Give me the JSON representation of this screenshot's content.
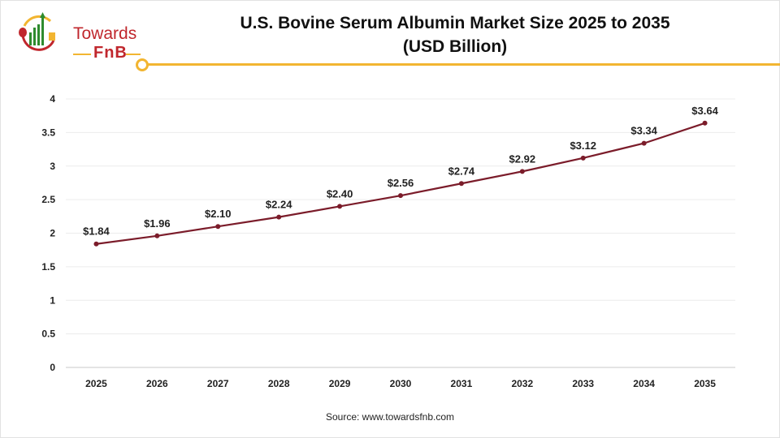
{
  "logo": {
    "line1": "Towards",
    "line2": "FnB"
  },
  "source": "Source: www.towardsfnb.com",
  "colors": {
    "line": "#7b1c2a",
    "accent": "#f2b531",
    "brand_red": "#c0272d",
    "grid": "#ececec"
  },
  "chart_data": {
    "type": "line",
    "title": "U.S. Bovine Serum Albumin Market Size 2025 to 2035",
    "subtitle": "(USD Billion)",
    "xlabel": "",
    "ylabel": "",
    "categories": [
      "2025",
      "2026",
      "2027",
      "2028",
      "2029",
      "2030",
      "2031",
      "2032",
      "2033",
      "2034",
      "2035"
    ],
    "values": [
      1.84,
      1.96,
      2.1,
      2.24,
      2.4,
      2.56,
      2.74,
      2.92,
      3.12,
      3.34,
      3.64
    ],
    "data_labels": [
      "$1.84",
      "$1.96",
      "$2.10",
      "$2.24",
      "$2.40",
      "$2.56",
      "$2.74",
      "$2.92",
      "$3.12",
      "$3.34",
      "$3.64"
    ],
    "yticks": [
      "0",
      "0.5",
      "1",
      "1.5",
      "2",
      "2.5",
      "3",
      "3.5",
      "4"
    ],
    "ylim": [
      0,
      4
    ],
    "grid": true,
    "legend": "none"
  }
}
